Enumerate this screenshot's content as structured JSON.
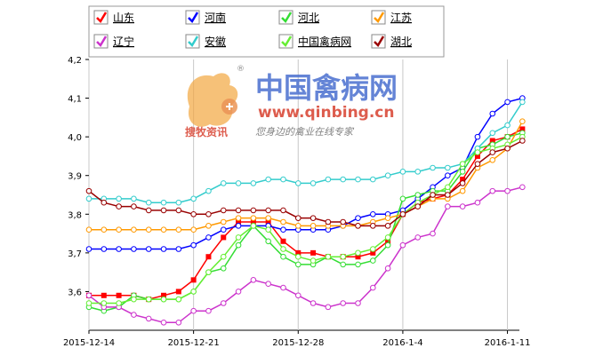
{
  "chart_data": {
    "type": "line",
    "title": "",
    "xlabel": "",
    "ylabel": "",
    "x": [
      "2015-12-14",
      "2015-12-15",
      "2015-12-16",
      "2015-12-17",
      "2015-12-18",
      "2015-12-19",
      "2015-12-20",
      "2015-12-21",
      "2015-12-22",
      "2015-12-23",
      "2015-12-24",
      "2015-12-25",
      "2015-12-26",
      "2015-12-27",
      "2015-12-28",
      "2015-12-29",
      "2015-12-30",
      "2015-12-31",
      "2016-01-01",
      "2016-01-02",
      "2016-01-03",
      "2016-01-04",
      "2016-01-05",
      "2016-01-06",
      "2016-01-07",
      "2016-01-08",
      "2016-01-09",
      "2016-01-10",
      "2016-01-11",
      "2016-01-12"
    ],
    "x_ticks": [
      {
        "date": "2015-12-14",
        "label": "2015-12-14"
      },
      {
        "date": "2015-12-21",
        "label": "2015-12-21"
      },
      {
        "date": "2015-12-28",
        "label": "2015-12-28"
      },
      {
        "date": "2016-01-04",
        "label": "2016-1-4"
      },
      {
        "date": "2016-01-11",
        "label": "2016-1-11"
      }
    ],
    "ylim": [
      3.5,
      4.2
    ],
    "y_ticks": [
      "3,6",
      "3,7",
      "3,8",
      "3,9",
      "4,0",
      "4,1",
      "4,2"
    ],
    "grid": "vertical-only",
    "legend_position": "top",
    "series": [
      {
        "name": "山东",
        "color": "#ff0000",
        "marker": "square",
        "values": [
          3.59,
          3.59,
          3.59,
          3.59,
          3.58,
          3.59,
          3.6,
          3.63,
          3.69,
          3.74,
          3.78,
          3.78,
          3.78,
          3.73,
          3.7,
          3.7,
          3.69,
          3.69,
          3.69,
          3.7,
          3.73,
          3.8,
          3.83,
          3.84,
          3.85,
          3.89,
          3.95,
          3.99,
          4.0,
          4.02
        ]
      },
      {
        "name": "河南",
        "color": "#0000ff",
        "marker": "circle",
        "values": [
          3.71,
          3.71,
          3.71,
          3.71,
          3.71,
          3.71,
          3.71,
          3.72,
          3.74,
          3.76,
          3.77,
          3.77,
          3.77,
          3.76,
          3.76,
          3.76,
          3.76,
          3.77,
          3.79,
          3.8,
          3.8,
          3.81,
          3.84,
          3.87,
          3.9,
          3.92,
          4.0,
          4.06,
          4.09,
          4.1
        ]
      },
      {
        "name": "河北",
        "color": "#33dd33",
        "marker": "circle",
        "values": [
          3.56,
          3.55,
          3.56,
          3.59,
          3.58,
          3.58,
          3.58,
          3.6,
          3.65,
          3.66,
          3.72,
          3.77,
          3.73,
          3.69,
          3.67,
          3.67,
          3.69,
          3.67,
          3.67,
          3.68,
          3.72,
          3.84,
          3.85,
          3.86,
          3.86,
          3.91,
          3.97,
          3.98,
          4.0,
          4.01
        ]
      },
      {
        "name": "江苏",
        "color": "#ff9900",
        "marker": "circle",
        "values": [
          3.76,
          3.76,
          3.76,
          3.76,
          3.76,
          3.76,
          3.76,
          3.76,
          3.77,
          3.78,
          3.79,
          3.79,
          3.79,
          3.78,
          3.77,
          3.77,
          3.77,
          3.77,
          3.77,
          3.78,
          3.79,
          3.8,
          3.82,
          3.84,
          3.84,
          3.86,
          3.92,
          3.94,
          3.97,
          4.04
        ]
      },
      {
        "name": "辽宁",
        "color": "#cc33cc",
        "marker": "circle",
        "values": [
          3.59,
          3.56,
          3.56,
          3.54,
          3.53,
          3.52,
          3.52,
          3.55,
          3.55,
          3.57,
          3.6,
          3.63,
          3.62,
          3.61,
          3.59,
          3.57,
          3.56,
          3.57,
          3.57,
          3.61,
          3.66,
          3.72,
          3.74,
          3.75,
          3.82,
          3.82,
          3.83,
          3.86,
          3.86,
          3.87
        ]
      },
      {
        "name": "安徽",
        "color": "#33cccc",
        "marker": "circle",
        "values": [
          3.84,
          3.84,
          3.84,
          3.84,
          3.83,
          3.83,
          3.83,
          3.84,
          3.86,
          3.88,
          3.88,
          3.88,
          3.89,
          3.89,
          3.88,
          3.88,
          3.89,
          3.89,
          3.89,
          3.89,
          3.9,
          3.91,
          3.91,
          3.92,
          3.92,
          3.93,
          3.97,
          4.01,
          4.03,
          4.09
        ]
      },
      {
        "name": "中国禽病网",
        "color": "#66ee33",
        "marker": "circle",
        "values": [
          3.57,
          3.57,
          3.57,
          3.58,
          3.58,
          3.58,
          3.58,
          3.6,
          3.65,
          3.69,
          3.74,
          3.77,
          3.76,
          3.71,
          3.69,
          3.68,
          3.69,
          3.69,
          3.7,
          3.71,
          3.74,
          3.8,
          3.83,
          3.85,
          3.87,
          3.93,
          3.96,
          3.97,
          3.98,
          4.0
        ]
      },
      {
        "name": "湖北",
        "color": "#990000",
        "marker": "circle",
        "values": [
          3.86,
          3.83,
          3.82,
          3.82,
          3.81,
          3.81,
          3.81,
          3.8,
          3.8,
          3.81,
          3.81,
          3.81,
          3.81,
          3.81,
          3.79,
          3.79,
          3.78,
          3.78,
          3.77,
          3.77,
          3.77,
          3.8,
          3.82,
          3.85,
          3.85,
          3.88,
          3.93,
          3.96,
          3.97,
          3.99
        ]
      }
    ]
  },
  "watermark": {
    "site_name": "中国禽病网",
    "url": "www.qinbing.cn",
    "brand": "搜牧资讯",
    "tagline": "您身边的禽业在线专家",
    "reg_mark": "®"
  }
}
